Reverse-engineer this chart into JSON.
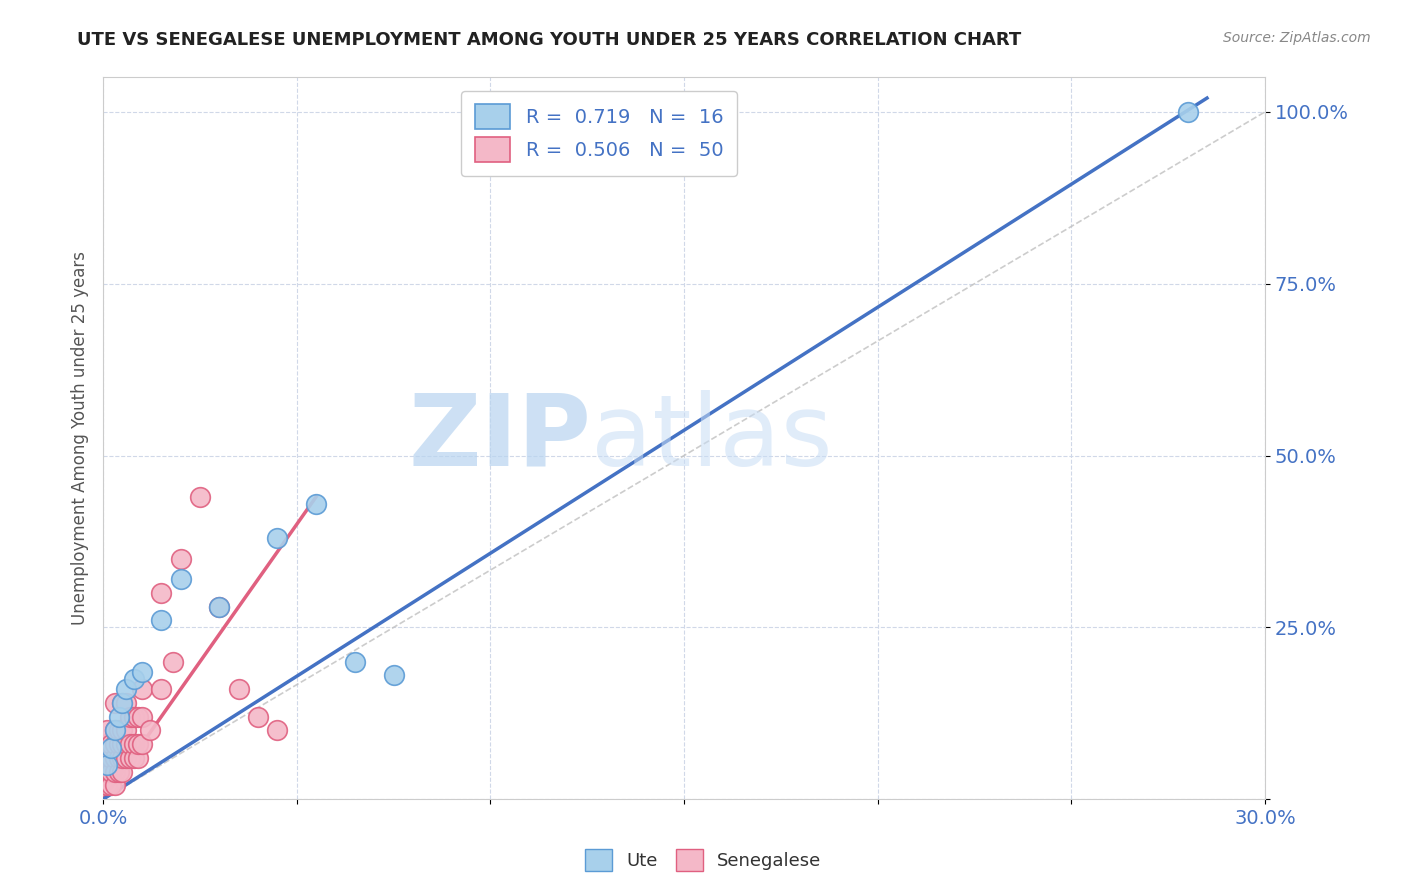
{
  "title": "UTE VS SENEGALESE UNEMPLOYMENT AMONG YOUTH UNDER 25 YEARS CORRELATION CHART",
  "source": "Source: ZipAtlas.com",
  "ylabel": "Unemployment Among Youth under 25 years",
  "xlim": [
    0,
    0.3
  ],
  "ylim": [
    0,
    1.05
  ],
  "ute_color": "#a8d0eb",
  "ute_edge_color": "#5b9bd5",
  "senegalese_color": "#f4b8c8",
  "senegalese_edge_color": "#e06080",
  "ute_line_color": "#4472c4",
  "senegalese_line_color": "#e06080",
  "ref_line_color": "#c0c0c0",
  "legend_label_ute": "R =  0.719   N =  16",
  "legend_label_sen": "R =  0.506   N =  50",
  "watermark_zip": "ZIP",
  "watermark_atlas": "atlas",
  "background_color": "#ffffff",
  "tick_color": "#4472c4",
  "ute_scatter_x": [
    0.001,
    0.002,
    0.003,
    0.004,
    0.005,
    0.006,
    0.008,
    0.01,
    0.015,
    0.02,
    0.03,
    0.045,
    0.055,
    0.065,
    0.075,
    0.28
  ],
  "ute_scatter_y": [
    0.05,
    0.075,
    0.1,
    0.12,
    0.14,
    0.16,
    0.175,
    0.185,
    0.26,
    0.32,
    0.28,
    0.38,
    0.43,
    0.2,
    0.18,
    1.0
  ],
  "senegalese_scatter_x": [
    0.001,
    0.001,
    0.001,
    0.001,
    0.001,
    0.002,
    0.002,
    0.002,
    0.002,
    0.003,
    0.003,
    0.003,
    0.003,
    0.003,
    0.003,
    0.004,
    0.004,
    0.004,
    0.004,
    0.005,
    0.005,
    0.005,
    0.005,
    0.005,
    0.006,
    0.006,
    0.006,
    0.006,
    0.007,
    0.007,
    0.007,
    0.008,
    0.008,
    0.008,
    0.009,
    0.009,
    0.009,
    0.01,
    0.01,
    0.01,
    0.012,
    0.015,
    0.015,
    0.018,
    0.02,
    0.025,
    0.03,
    0.035,
    0.04,
    0.045
  ],
  "senegalese_scatter_y": [
    0.02,
    0.04,
    0.06,
    0.08,
    0.1,
    0.02,
    0.04,
    0.06,
    0.08,
    0.02,
    0.04,
    0.06,
    0.08,
    0.1,
    0.14,
    0.04,
    0.06,
    0.08,
    0.1,
    0.04,
    0.06,
    0.08,
    0.1,
    0.14,
    0.06,
    0.08,
    0.1,
    0.14,
    0.06,
    0.08,
    0.12,
    0.06,
    0.08,
    0.12,
    0.06,
    0.08,
    0.12,
    0.08,
    0.12,
    0.16,
    0.1,
    0.16,
    0.3,
    0.2,
    0.35,
    0.44,
    0.28,
    0.16,
    0.12,
    0.1
  ],
  "ute_trend_x": [
    0.0,
    0.285
  ],
  "ute_trend_y": [
    0.0,
    1.02
  ],
  "sen_trend_x": [
    0.0,
    0.055
  ],
  "sen_trend_y": [
    0.0,
    0.44
  ],
  "ref_line_x": [
    0.0,
    0.3
  ],
  "ref_line_y": [
    0.0,
    1.0
  ]
}
